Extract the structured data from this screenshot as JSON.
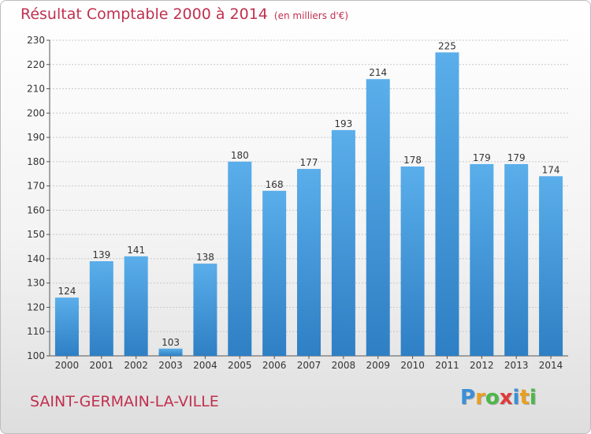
{
  "title": "Résultat Comptable 2000 à 2014",
  "unit_note": "(en milliers d'€)",
  "commune": "SAINT-GERMAIN-LA-VILLE",
  "brand": {
    "letters": [
      "P",
      "r",
      "o",
      "x",
      "i",
      "t",
      "i"
    ],
    "colors": [
      "#3a8fd8",
      "#e8a020",
      "#4db848",
      "#e03a3a",
      "#3a8fd8",
      "#e8a020",
      "#4db848"
    ]
  },
  "colors": {
    "title": "#c0304f",
    "bar_light": "#5aaeea",
    "bar_dark": "#2e7fc4"
  },
  "chart_data": {
    "type": "bar",
    "title": "Résultat Comptable 2000 à 2014",
    "categories": [
      "2000",
      "2001",
      "2002",
      "2003",
      "2004",
      "2005",
      "2006",
      "2007",
      "2008",
      "2009",
      "2010",
      "2011",
      "2012",
      "2013",
      "2014"
    ],
    "values": [
      124,
      139,
      141,
      103,
      138,
      180,
      168,
      177,
      193,
      214,
      178,
      225,
      179,
      179,
      174
    ],
    "ylim": [
      100,
      230
    ],
    "yticks": [
      100,
      110,
      120,
      130,
      140,
      150,
      160,
      170,
      180,
      190,
      200,
      210,
      220,
      230
    ],
    "grid": true,
    "data_labels": true
  }
}
